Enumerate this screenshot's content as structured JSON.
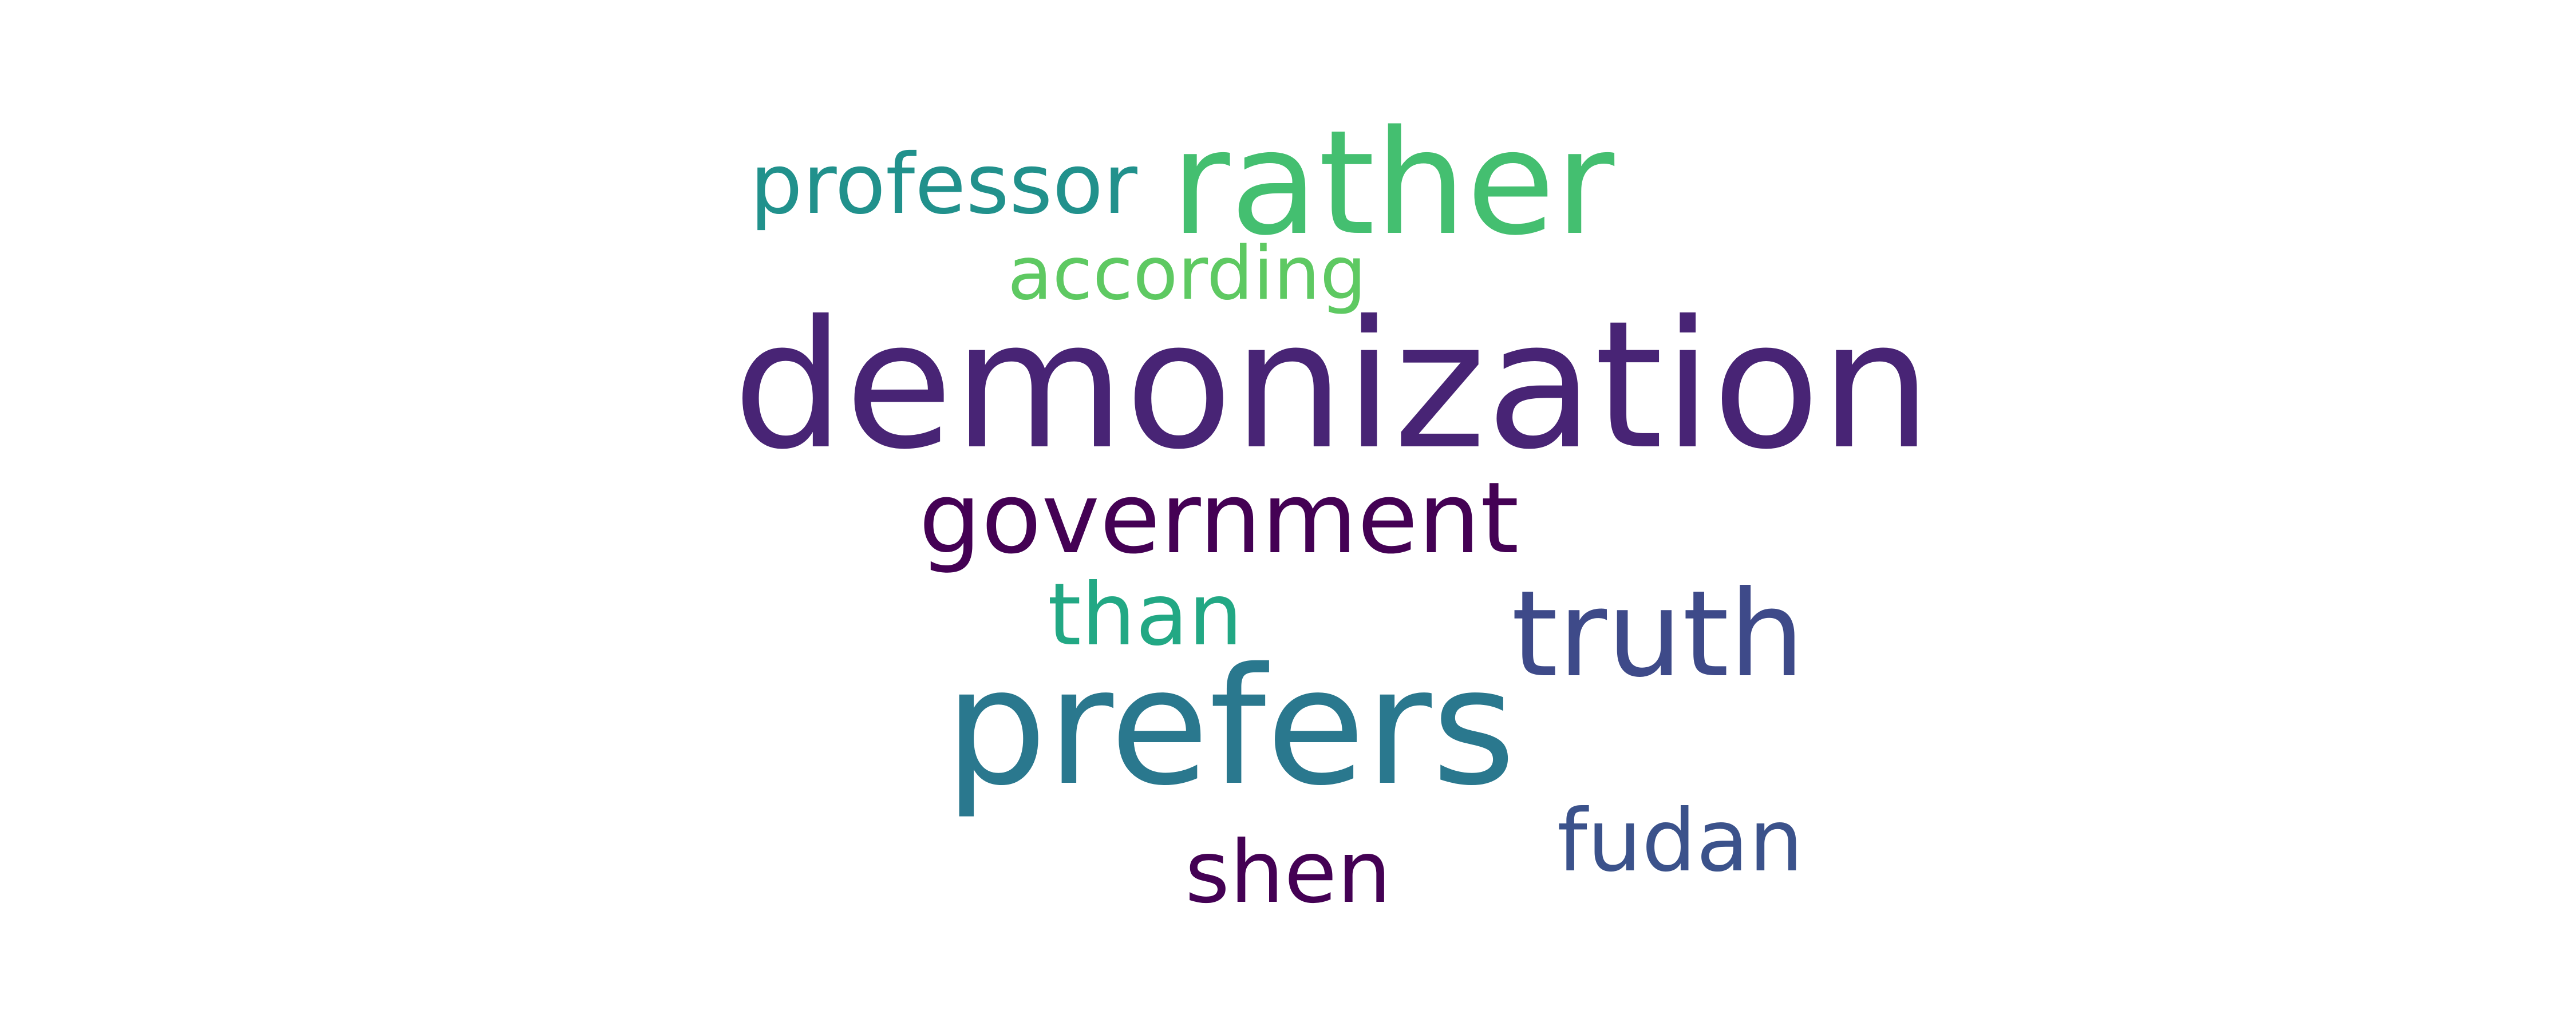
{
  "words": {
    "demonization": {
      "text": "demonization",
      "color": "#482475"
    },
    "prefers": {
      "text": "prefers",
      "color": "#2a788e"
    },
    "rather": {
      "text": "rather",
      "color": "#44bf70"
    },
    "truth": {
      "text": "truth",
      "color": "#3e4a89"
    },
    "government": {
      "text": "government",
      "color": "#440154"
    },
    "professor": {
      "text": "professor",
      "color": "#21918c"
    },
    "according": {
      "text": "according",
      "color": "#5ec962"
    },
    "than": {
      "text": "than",
      "color": "#22a884"
    },
    "fudan": {
      "text": "fudan",
      "color": "#3b528b"
    },
    "shen": {
      "text": "shen",
      "color": "#440154"
    }
  }
}
